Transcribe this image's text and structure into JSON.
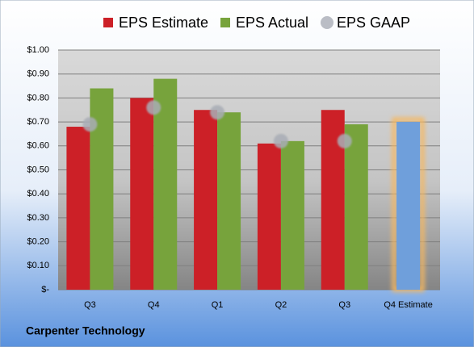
{
  "chart_data": {
    "type": "bar",
    "categories": [
      "Q3",
      "Q4",
      "Q1",
      "Q2",
      "Q3",
      "Q4 Estimate"
    ],
    "series": [
      {
        "name": "EPS Estimate",
        "color": "#cc2027",
        "values": [
          0.68,
          0.8,
          0.75,
          0.61,
          0.75,
          0.7
        ]
      },
      {
        "name": "EPS Actual",
        "color": "#77a33c",
        "values": [
          0.84,
          0.88,
          0.74,
          0.62,
          0.69,
          null
        ]
      },
      {
        "name": "EPS GAAP",
        "color": "#a9adb6",
        "values": [
          0.69,
          0.76,
          0.74,
          0.62,
          0.62,
          null
        ]
      }
    ],
    "highlight_color": "#6f9fdb",
    "highlight_glow": "#f6b860",
    "ylim": [
      0,
      1
    ],
    "yticks": [
      {
        "value": 0,
        "label": "$-"
      },
      {
        "value": 0.1,
        "label": "$0.10"
      },
      {
        "value": 0.2,
        "label": "$0.20"
      },
      {
        "value": 0.3,
        "label": "$0.30"
      },
      {
        "value": 0.4,
        "label": "$0.40"
      },
      {
        "value": 0.5,
        "label": "$0.50"
      },
      {
        "value": 0.6,
        "label": "$0.60"
      },
      {
        "value": 0.7,
        "label": "$0.70"
      },
      {
        "value": 0.8,
        "label": "$0.80"
      },
      {
        "value": 0.9,
        "label": "$0.90"
      },
      {
        "value": 1,
        "label": "$1.00"
      }
    ],
    "grid": true,
    "footer": "Carpenter Technology"
  }
}
